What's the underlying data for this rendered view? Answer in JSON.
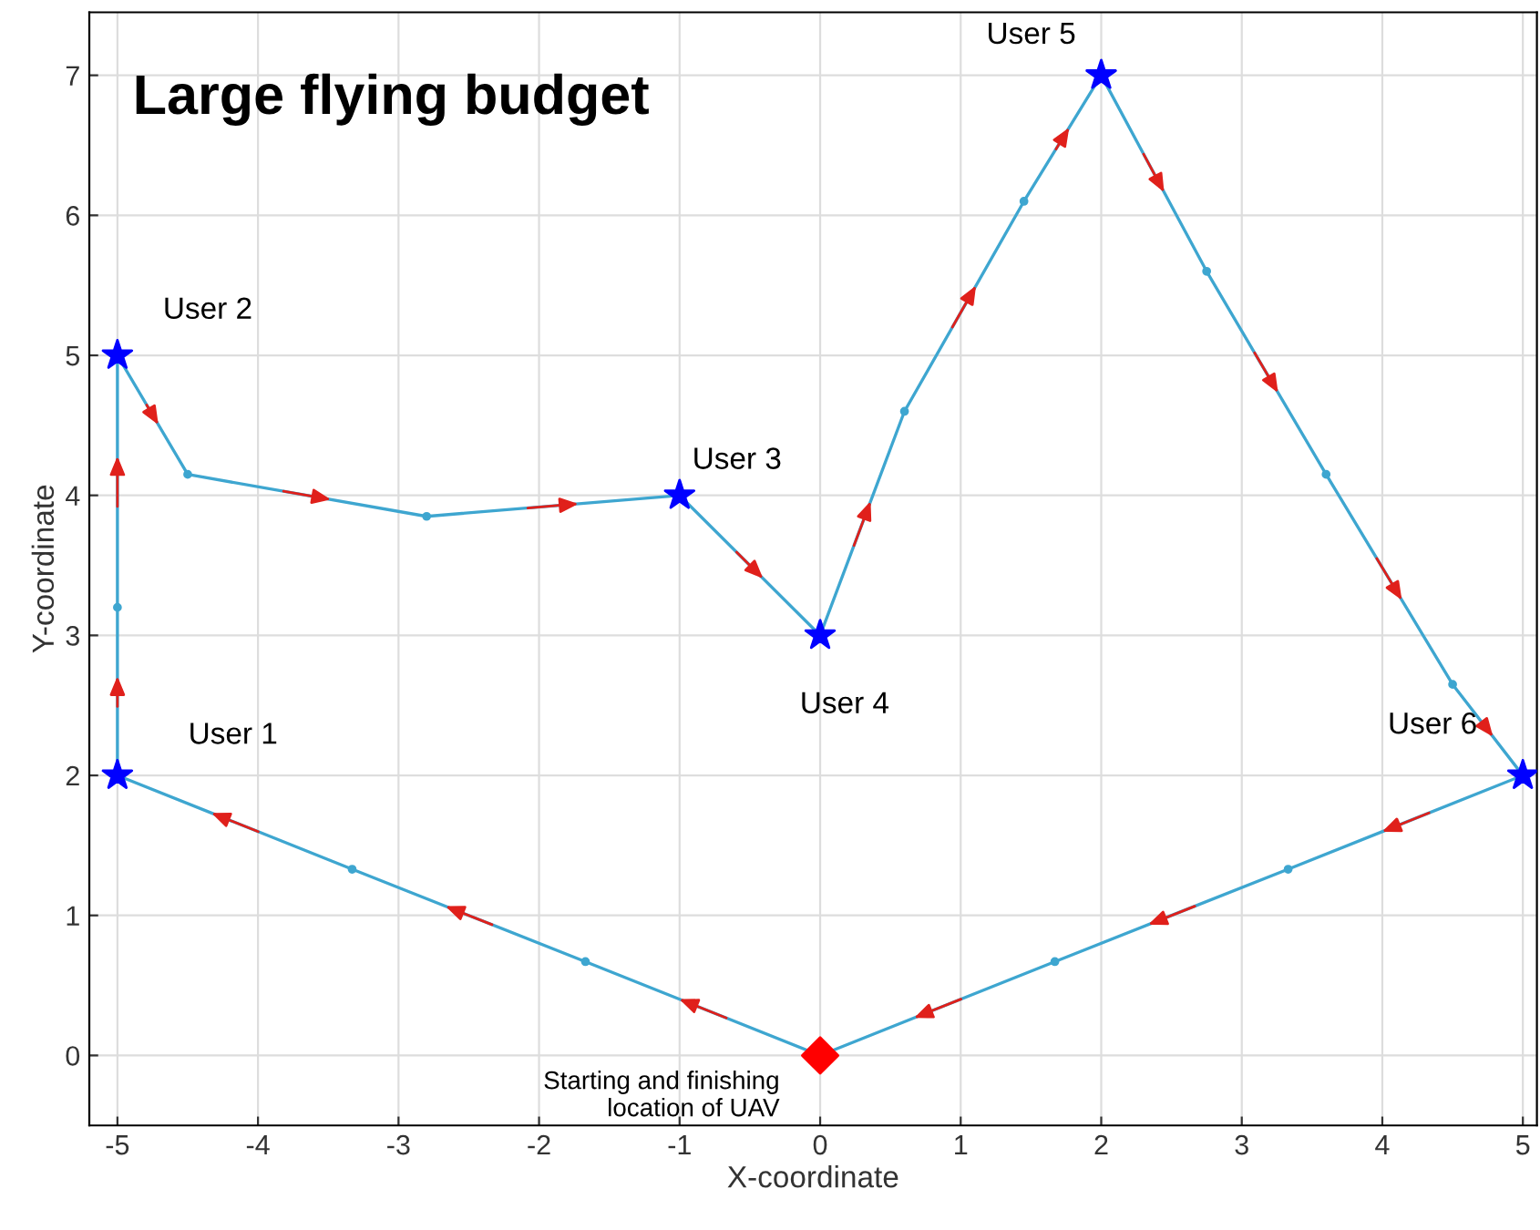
{
  "chart_data": {
    "type": "line",
    "xlabel": "X-coordinate",
    "ylabel": "Y-coordinate",
    "xlim": [
      -5.2,
      5.1
    ],
    "ylim": [
      -0.5,
      7.45
    ],
    "xticks": [
      -5,
      -4,
      -3,
      -2,
      -1,
      0,
      1,
      2,
      3,
      4,
      5
    ],
    "yticks": [
      0,
      1,
      2,
      3,
      4,
      5,
      6,
      7
    ],
    "grid": true,
    "series": [
      {
        "color": "#3ea6d0",
        "marker": "circle",
        "line_style": "solid",
        "x": [
          0,
          -1.67,
          -3.33,
          -5
        ],
        "values": [
          0,
          0.67,
          1.33,
          2
        ]
      },
      {
        "color": "#3ea6d0",
        "marker": "circle",
        "line_style": "solid",
        "x": [
          -5,
          -5,
          -5
        ],
        "values": [
          2,
          3.2,
          5
        ]
      },
      {
        "color": "#3ea6d0",
        "marker": "circle",
        "line_style": "solid",
        "x": [
          -5,
          -4.5,
          -2.8,
          -1
        ],
        "values": [
          5,
          4.15,
          3.85,
          4
        ]
      },
      {
        "color": "#3ea6d0",
        "marker": "circle",
        "line_style": "solid",
        "x": [
          -1,
          0
        ],
        "values": [
          4,
          3
        ]
      },
      {
        "color": "#3ea6d0",
        "marker": "circle",
        "line_style": "solid",
        "x": [
          0,
          0.6,
          1.45,
          2
        ],
        "values": [
          3,
          4.6,
          6.1,
          7
        ]
      },
      {
        "color": "#3ea6d0",
        "marker": "circle",
        "line_style": "solid",
        "x": [
          2,
          2.75,
          3.6,
          4.5,
          5
        ],
        "values": [
          7,
          5.6,
          4.15,
          2.65,
          2
        ]
      },
      {
        "color": "#3ea6d0",
        "marker": "circle",
        "line_style": "solid",
        "x": [
          5,
          3.33,
          1.67,
          0
        ],
        "values": [
          2,
          1.33,
          0.67,
          0
        ]
      },
      {
        "type": "scatter",
        "color": "#0000ff",
        "marker": "star",
        "x": [
          -5,
          -5,
          -1,
          0,
          2,
          5
        ],
        "values": [
          2,
          5,
          4,
          3,
          7,
          2
        ]
      },
      {
        "type": "scatter",
        "color": "#ff0000",
        "marker": "diamond",
        "x": [
          0
        ],
        "values": [
          0
        ]
      }
    ],
    "annotations": [
      {
        "text": "User 1",
        "x": -5,
        "y": 2
      },
      {
        "text": "User 2",
        "x": -5,
        "y": 5
      },
      {
        "text": "User 3",
        "x": -1,
        "y": 4
      },
      {
        "text": "User 4",
        "x": 0,
        "y": 3
      },
      {
        "text": "User 5",
        "x": 2,
        "y": 7
      },
      {
        "text": "User 6",
        "x": 5,
        "y": 2
      },
      {
        "text": "Starting and finishing\nlocation of UAV",
        "x": 0,
        "y": 0
      },
      "Large flying budget"
    ]
  }
}
